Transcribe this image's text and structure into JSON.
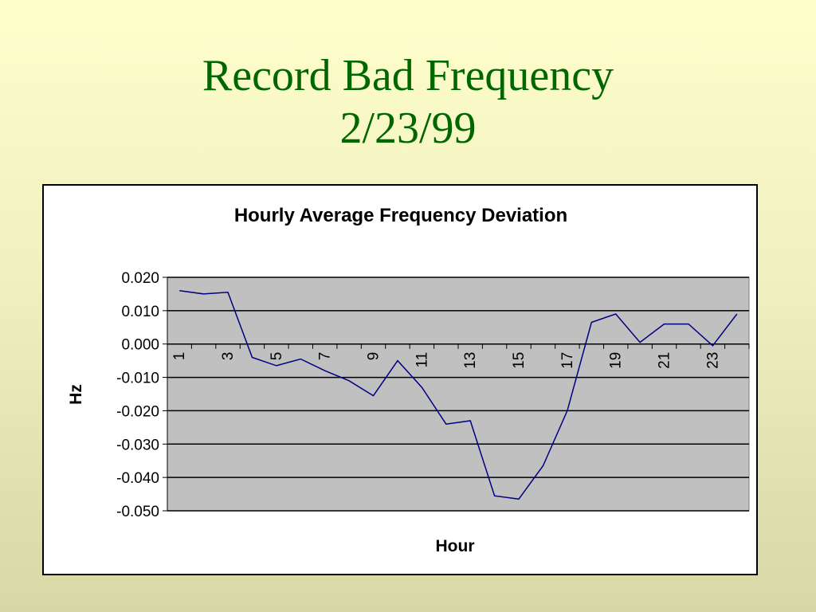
{
  "slide": {
    "title_line1": "Record Bad Frequency",
    "title_line2": "2/23/99"
  },
  "chart_data": {
    "type": "line",
    "title": "Hourly Average Frequency Deviation",
    "xlabel": "Hour",
    "ylabel": "Hz",
    "x": [
      1,
      2,
      3,
      4,
      5,
      6,
      7,
      8,
      9,
      10,
      11,
      12,
      13,
      14,
      15,
      16,
      17,
      18,
      19,
      20,
      21,
      22,
      23,
      24
    ],
    "x_tick_labels": [
      "1",
      "3",
      "5",
      "7",
      "9",
      "11",
      "13",
      "15",
      "17",
      "19",
      "21",
      "23"
    ],
    "series": [
      {
        "values": [
          0.016,
          0.015,
          0.0155,
          -0.004,
          -0.0065,
          -0.0045,
          -0.008,
          -0.011,
          -0.0155,
          -0.005,
          -0.013,
          -0.024,
          -0.023,
          -0.0455,
          -0.0465,
          -0.0365,
          -0.02,
          0.0065,
          0.009,
          0.0005,
          0.006,
          0.006,
          -0.0005,
          0.009
        ],
        "color": "#000080"
      }
    ],
    "ylim": [
      -0.05,
      0.02
    ],
    "y_ticks": [
      "0.020",
      "0.010",
      "0.000",
      "-0.010",
      "-0.020",
      "-0.030",
      "-0.040",
      "-0.050"
    ],
    "grid": true,
    "legend": "none",
    "plot_background": "#c0c0c0"
  }
}
